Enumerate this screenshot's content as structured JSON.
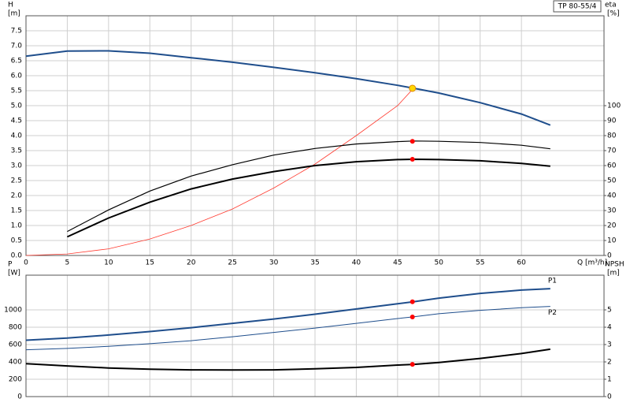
{
  "chart_data": [
    {
      "type": "line",
      "title": "TP 80-55/4",
      "y_label": "H",
      "y_unit": "[m]",
      "y2_label": "eta",
      "y2_unit": "[%]",
      "x_label": "Q [m³/h]",
      "x": [
        0,
        5,
        10,
        15,
        20,
        25,
        30,
        35,
        40,
        45,
        47,
        50,
        55,
        60,
        63.5
      ],
      "xlim": [
        0,
        70
      ],
      "xticks": [
        0,
        5,
        10,
        15,
        20,
        25,
        30,
        35,
        40,
        45,
        50,
        55,
        60
      ],
      "show_xtick_labels": true,
      "ylim": [
        0,
        8
      ],
      "yticks": [
        {
          "value": 0,
          "label": "0.0"
        },
        0.5,
        {
          "value": 1,
          "label": "1.0"
        },
        1.5,
        {
          "value": 2,
          "label": "2.0"
        },
        2.5,
        {
          "value": 3,
          "label": "3.0"
        },
        3.5,
        {
          "value": 4,
          "label": "4.0"
        },
        4.5,
        {
          "value": 5,
          "label": "5.0"
        },
        5.5,
        {
          "value": 6,
          "label": "6.0"
        },
        6.5,
        {
          "value": 7,
          "label": "7.0"
        },
        7.5
      ],
      "y2lim": [
        0,
        160
      ],
      "y2ticks": [
        0,
        10,
        20,
        30,
        40,
        50,
        60,
        70,
        80,
        90,
        100
      ],
      "grid": true,
      "series": [
        {
          "color": "#1f4e8c",
          "width": 2,
          "values": [
            6.65,
            6.82,
            6.83,
            6.75,
            6.6,
            6.45,
            6.28,
            6.1,
            5.9,
            5.68,
            5.58,
            5.42,
            5.1,
            4.72,
            4.35
          ]
        },
        {
          "color": "#ff3b30",
          "width": 0.8,
          "values": [
            0,
            0.05,
            0.22,
            0.55,
            1.0,
            1.55,
            2.25,
            3.05,
            4.0,
            5.0,
            5.6,
            null,
            null,
            null,
            null
          ]
        },
        {
          "color": "#000000",
          "width": 1.2,
          "axis": "y2",
          "values": [
            null,
            16,
            30.4,
            43,
            53,
            60.6,
            67,
            71.4,
            74.4,
            76,
            76.4,
            76.2,
            75.4,
            73.6,
            71.2
          ]
        },
        {
          "color": "#000000",
          "width": 2,
          "axis": "y2",
          "values": [
            null,
            12.4,
            25,
            35.6,
            44.4,
            51,
            56,
            60,
            62.6,
            64,
            64.2,
            64,
            63.2,
            61.4,
            59.6
          ]
        }
      ],
      "points": [
        {
          "x": 46.8,
          "y": 5.58,
          "color": "#ffd700"
        },
        {
          "x": 46.8,
          "y": 76.2,
          "color": "#ff0000",
          "axis": "y2"
        },
        {
          "x": 46.8,
          "y": 64.2,
          "color": "#ff0000",
          "axis": "y2"
        }
      ]
    },
    {
      "type": "line",
      "y_label": "P",
      "y_unit": "[W]",
      "y2_label": "NPSH",
      "y2_unit": "[m]",
      "x": [
        0,
        5,
        10,
        15,
        20,
        25,
        30,
        35,
        40,
        45,
        47,
        50,
        55,
        60,
        63.5
      ],
      "xlim": [
        0,
        70
      ],
      "xticks": [
        0,
        5,
        10,
        15,
        20,
        25,
        30,
        35,
        40,
        45,
        50,
        55,
        60
      ],
      "show_xtick_labels": false,
      "ylim": [
        0,
        1400
      ],
      "yticks": [
        0,
        200,
        400,
        600,
        800,
        {
          "value": 1000,
          "label": "1000"
        }
      ],
      "y2lim": [
        0,
        7
      ],
      "y2ticks": [
        0,
        1,
        2,
        3,
        4,
        5
      ],
      "grid": true,
      "series": [
        {
          "name": "P1",
          "color": "#1f4e8c",
          "width": 2,
          "values": [
            650,
            675,
            710,
            750,
            795,
            845,
            895,
            950,
            1010,
            1070,
            1095,
            1135,
            1190,
            1228,
            1245
          ]
        },
        {
          "name": "P2",
          "color": "#1f4e8c",
          "width": 1,
          "values": [
            540,
            555,
            580,
            610,
            645,
            690,
            740,
            790,
            845,
            900,
            920,
            955,
            995,
            1025,
            1040
          ]
        },
        {
          "color": "#000000",
          "width": 2,
          "axis": "y2",
          "values": [
            1.9,
            1.77,
            1.65,
            1.58,
            1.54,
            1.53,
            1.54,
            1.6,
            1.68,
            1.82,
            1.86,
            1.97,
            2.2,
            2.48,
            2.73
          ]
        }
      ],
      "points": [
        {
          "x": 46.8,
          "y": 1093,
          "color": "#ff0000"
        },
        {
          "x": 46.8,
          "y": 918,
          "color": "#ff0000"
        },
        {
          "x": 46.8,
          "y": 1.86,
          "color": "#ff0000",
          "axis": "y2"
        }
      ]
    }
  ]
}
